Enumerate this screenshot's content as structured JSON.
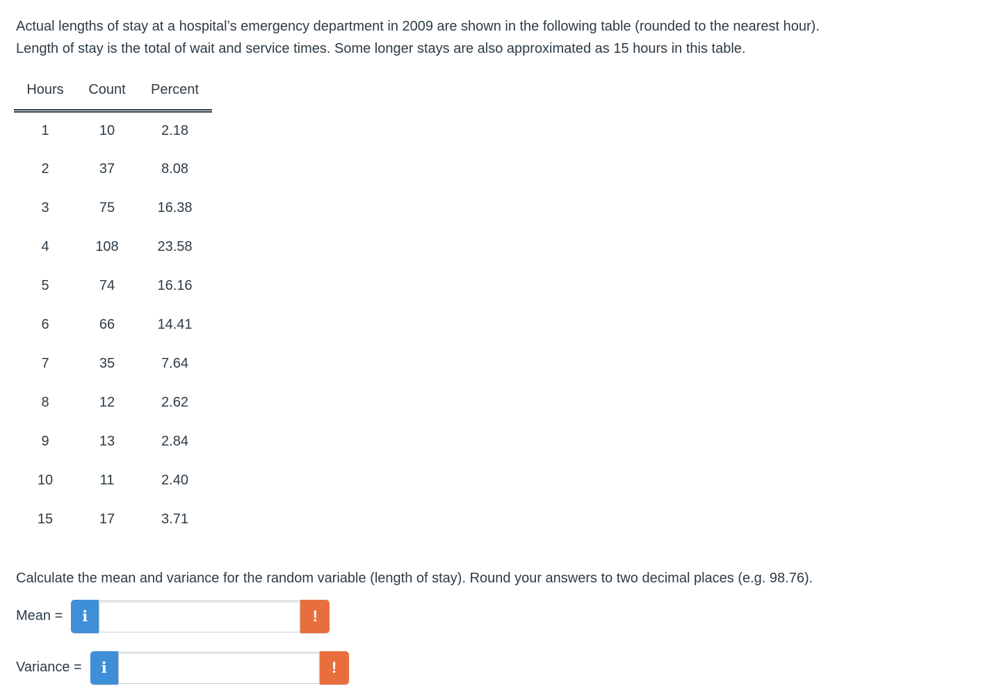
{
  "intro": {
    "line1": "Actual lengths of stay at a hospital’s emergency department in 2009 are shown in the following table (rounded to the nearest hour).",
    "line2": "Length of stay is the total of wait and service times. Some longer stays are also approximated as 15 hours in this table."
  },
  "table": {
    "headers": [
      "Hours",
      "Count",
      "Percent"
    ],
    "rows": [
      [
        "1",
        "10",
        "2.18"
      ],
      [
        "2",
        "37",
        "8.08"
      ],
      [
        "3",
        "75",
        "16.38"
      ],
      [
        "4",
        "108",
        "23.58"
      ],
      [
        "5",
        "74",
        "16.16"
      ],
      [
        "6",
        "66",
        "14.41"
      ],
      [
        "7",
        "35",
        "7.64"
      ],
      [
        "8",
        "12",
        "2.62"
      ],
      [
        "9",
        "13",
        "2.84"
      ],
      [
        "10",
        "11",
        "2.40"
      ],
      [
        "15",
        "17",
        "3.71"
      ]
    ]
  },
  "question": "Calculate the mean and variance for the random variable (length of stay). Round your answers to two decimal places (e.g. 98.76).",
  "answers": [
    {
      "label": "Mean =",
      "value": "",
      "placeholder": ""
    },
    {
      "label": "Variance =",
      "value": "",
      "placeholder": ""
    }
  ],
  "icons": {
    "info": "i",
    "warning": "!"
  },
  "colors": {
    "info_blue": "#3e8ed8",
    "warning_orange": "#e86f3d",
    "text": "#2d3b45",
    "input_border": "#c7cdd1"
  }
}
